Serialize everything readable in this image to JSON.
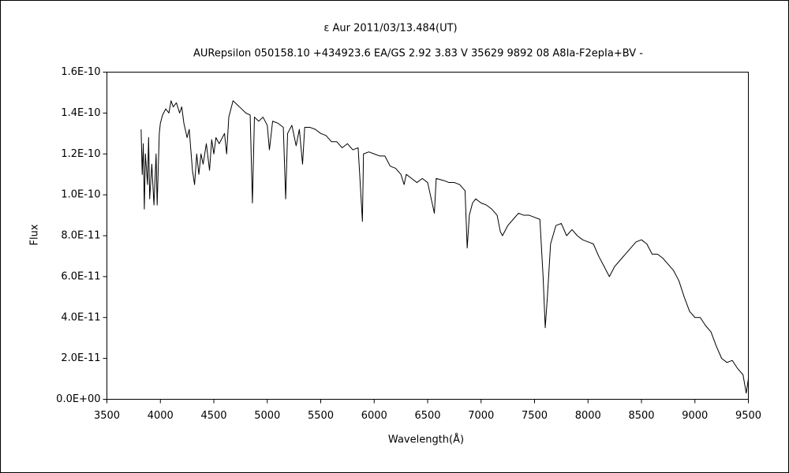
{
  "chart_data": {
    "type": "line",
    "title": "ε Aur   2011/03/13.484(UT)",
    "subtitle": "AURepsilon 050158.10 +434923.6 EA/GS 2.92 3.83 V 35629 9892 08 A8Ia-F2epIa+BV -",
    "xlabel": "Wavelength(Å)",
    "ylabel": "Flux",
    "xlim": [
      3500,
      9500
    ],
    "xticks": [
      3500,
      4000,
      4500,
      5000,
      5500,
      6000,
      6500,
      7000,
      7500,
      8000,
      8500,
      9000,
      9500
    ],
    "ylim": [
      0,
      1.6e-10
    ],
    "yticks": [
      {
        "value": 0,
        "label": "0.0E+00"
      },
      {
        "value": 2e-11,
        "label": "2.0E-11"
      },
      {
        "value": 4e-11,
        "label": "4.0E-11"
      },
      {
        "value": 6e-11,
        "label": "6.0E-11"
      },
      {
        "value": 8e-11,
        "label": "8.0E-11"
      },
      {
        "value": 1e-10,
        "label": "1.0E-10"
      },
      {
        "value": 1.2e-10,
        "label": "1.2E-10"
      },
      {
        "value": 1.4e-10,
        "label": "1.4E-10"
      },
      {
        "value": 1.6e-10,
        "label": "1.6E-10"
      }
    ],
    "grid": false,
    "series": [
      {
        "color": "#000000",
        "x": [
          3820,
          3830,
          3840,
          3850,
          3860,
          3880,
          3890,
          3900,
          3920,
          3940,
          3960,
          3970,
          3990,
          4000,
          4020,
          4050,
          4080,
          4100,
          4120,
          4150,
          4180,
          4200,
          4220,
          4250,
          4270,
          4300,
          4320,
          4340,
          4360,
          4380,
          4400,
          4430,
          4460,
          4480,
          4500,
          4520,
          4550,
          4600,
          4620,
          4640,
          4680,
          4720,
          4760,
          4800,
          4840,
          4861,
          4880,
          4920,
          4960,
          5000,
          5020,
          5050,
          5100,
          5150,
          5172,
          5190,
          5230,
          5270,
          5300,
          5330,
          5350,
          5400,
          5450,
          5500,
          5550,
          5600,
          5650,
          5700,
          5750,
          5800,
          5850,
          5890,
          5900,
          5950,
          6000,
          6050,
          6100,
          6150,
          6200,
          6250,
          6280,
          6300,
          6350,
          6400,
          6450,
          6500,
          6563,
          6580,
          6650,
          6700,
          6750,
          6800,
          6850,
          6870,
          6890,
          6920,
          6950,
          7000,
          7050,
          7100,
          7150,
          7180,
          7200,
          7230,
          7250,
          7300,
          7350,
          7400,
          7450,
          7500,
          7550,
          7580,
          7600,
          7620,
          7650,
          7700,
          7750,
          7800,
          7850,
          7900,
          7950,
          8000,
          8050,
          8100,
          8150,
          8200,
          8250,
          8300,
          8350,
          8400,
          8450,
          8500,
          8550,
          8600,
          8650,
          8700,
          8750,
          8800,
          8850,
          8900,
          8950,
          9000,
          9050,
          9100,
          9150,
          9200,
          9250,
          9300,
          9350,
          9400,
          9450,
          9480,
          9500
        ],
        "values": [
          1.32e-10,
          1.1e-10,
          1.25e-10,
          9.3e-11,
          1.2e-10,
          1.05e-10,
          1.28e-10,
          9.8e-11,
          1.15e-10,
          9.5e-11,
          1.2e-10,
          9.5e-11,
          1.3e-10,
          1.35e-10,
          1.39e-10,
          1.42e-10,
          1.4e-10,
          1.46e-10,
          1.43e-10,
          1.45e-10,
          1.4e-10,
          1.43e-10,
          1.35e-10,
          1.28e-10,
          1.32e-10,
          1.12e-10,
          1.05e-10,
          1.2e-10,
          1.1e-10,
          1.2e-10,
          1.15e-10,
          1.25e-10,
          1.12e-10,
          1.27e-10,
          1.2e-10,
          1.28e-10,
          1.25e-10,
          1.3e-10,
          1.2e-10,
          1.38e-10,
          1.46e-10,
          1.44e-10,
          1.42e-10,
          1.4e-10,
          1.39e-10,
          9.6e-11,
          1.38e-10,
          1.36e-10,
          1.38e-10,
          1.34e-10,
          1.22e-10,
          1.36e-10,
          1.35e-10,
          1.33e-10,
          9.8e-11,
          1.3e-10,
          1.34e-10,
          1.24e-10,
          1.32e-10,
          1.15e-10,
          1.33e-10,
          1.33e-10,
          1.32e-10,
          1.3e-10,
          1.29e-10,
          1.26e-10,
          1.26e-10,
          1.23e-10,
          1.25e-10,
          1.22e-10,
          1.23e-10,
          8.7e-11,
          1.2e-10,
          1.21e-10,
          1.2e-10,
          1.19e-10,
          1.19e-10,
          1.14e-10,
          1.13e-10,
          1.1e-10,
          1.05e-10,
          1.1e-10,
          1.08e-10,
          1.06e-10,
          1.08e-10,
          1.06e-10,
          9.1e-11,
          1.08e-10,
          1.07e-10,
          1.06e-10,
          1.06e-10,
          1.05e-10,
          1.02e-10,
          7.4e-11,
          9e-11,
          9.6e-11,
          9.8e-11,
          9.6e-11,
          9.5e-11,
          9.3e-11,
          9e-11,
          8.2e-11,
          8e-11,
          8.3e-11,
          8.5e-11,
          8.8e-11,
          9.1e-11,
          9e-11,
          9e-11,
          8.9e-11,
          8.8e-11,
          6e-11,
          3.5e-11,
          5e-11,
          7.6e-11,
          8.5e-11,
          8.6e-11,
          8e-11,
          8.3e-11,
          8e-11,
          7.8e-11,
          7.7e-11,
          7.6e-11,
          7e-11,
          6.5e-11,
          6e-11,
          6.5e-11,
          6.8e-11,
          7.1e-11,
          7.4e-11,
          7.7e-11,
          7.8e-11,
          7.6e-11,
          7.1e-11,
          7.1e-11,
          6.9e-11,
          6.6e-11,
          6.3e-11,
          5.8e-11,
          5e-11,
          4.3e-11,
          4e-11,
          4e-11,
          3.6e-11,
          3.3e-11,
          2.6e-11,
          2e-11,
          1.8e-11,
          1.9e-11,
          1.5e-11,
          1.2e-11,
          3e-12,
          1e-11
        ]
      }
    ]
  }
}
